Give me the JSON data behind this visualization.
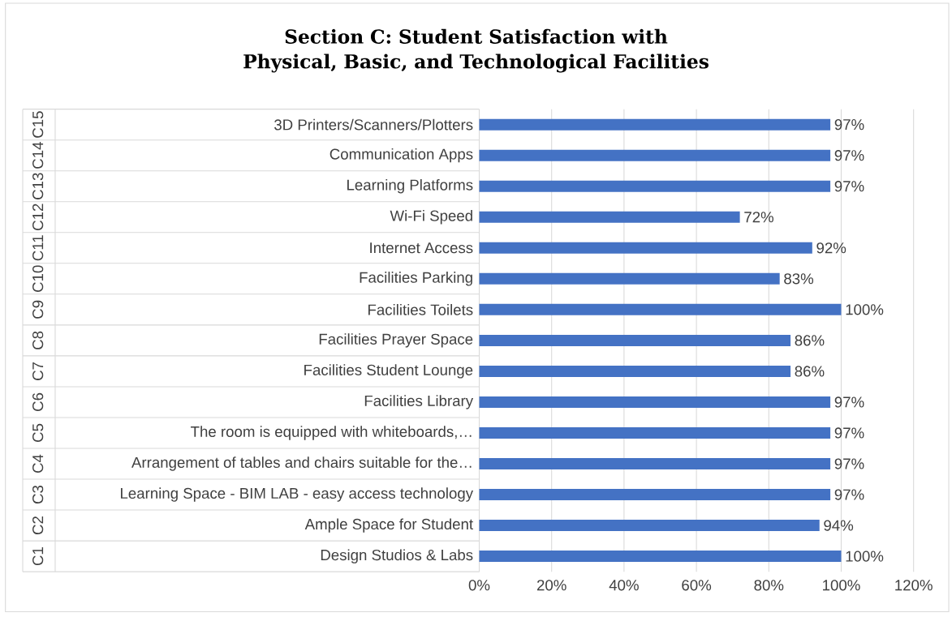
{
  "chart_data": {
    "type": "bar",
    "orientation": "horizontal",
    "title": "Section C: Student Satisfaction with Physical, Basic, and Technological Facilities",
    "categories": [
      "3D Printers/Scanners/Plotters",
      "Communication Apps",
      "Learning Platforms",
      "Wi-Fi Speed",
      "Internet Access",
      "Facilities Parking",
      "Facilities Toilets",
      "Facilities Prayer Space",
      "Facilities Student Lounge",
      "Facilities Library",
      "The room is equipped with whiteboards,…",
      "Arrangement of tables and chairs suitable for the…",
      "Learning Space - BIM LAB - easy access technology",
      "Ample Space for Student",
      "Design Studios & Labs"
    ],
    "values": [
      97,
      97,
      97,
      72,
      92,
      83,
      100,
      86,
      86,
      97,
      97,
      97,
      97,
      94,
      100
    ],
    "value_labels": [
      "97%",
      "97%",
      "97%",
      "72%",
      "92%",
      "83%",
      "100%",
      "86%",
      "86%",
      "97%",
      "97%",
      "97%",
      "97%",
      "94%",
      "100%"
    ],
    "color": "#4472c4",
    "xlim": [
      0,
      120
    ],
    "xticks": [
      {
        "value": 0,
        "label": "0%"
      },
      {
        "value": 20,
        "label": "20%"
      },
      {
        "value": 40,
        "label": "40%"
      },
      {
        "value": 60,
        "label": "60%"
      },
      {
        "value": 80,
        "label": "80%"
      },
      {
        "value": 100,
        "label": "100%"
      },
      {
        "value": 120,
        "label": "120%"
      }
    ],
    "grid": "x",
    "annotations": [
      "C15",
      "C14",
      "C13",
      "C12",
      "C11",
      "C10",
      "C9",
      "C8",
      "C7",
      "C6",
      "C5",
      "C4",
      "C3",
      "C2",
      "C1"
    ]
  }
}
